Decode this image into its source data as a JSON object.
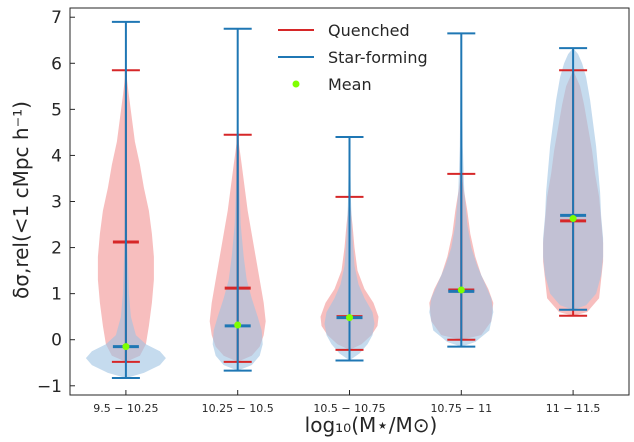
{
  "chart_data": {
    "type": "violin",
    "xlabel": "log₁₀(M⋆/M⊙)",
    "ylabel": "δσ,rel(<1 cMpc h⁻¹)",
    "categories": [
      "9.5 − 10.25",
      "10.25 − 10.5",
      "10.5 − 10.75",
      "10.75 − 11",
      "11 − 11.5"
    ],
    "ylim": [
      -1.2,
      7.2
    ],
    "yticks": [
      -1,
      0,
      1,
      2,
      3,
      4,
      5,
      6,
      7
    ],
    "grid": false,
    "legend_placement": "top-center",
    "legend": [
      {
        "label": "Quenched",
        "kind": "line",
        "color": "#d62728"
      },
      {
        "label": "Star-forming",
        "kind": "line",
        "color": "#1f77b4"
      },
      {
        "label": "Mean",
        "kind": "point",
        "color": "#7fff00"
      }
    ],
    "series": [
      {
        "name": "Quenched",
        "color": "#d62728",
        "fill": "#f4a8a8",
        "min": [
          -0.48,
          -0.48,
          -0.22,
          0.0,
          0.52
        ],
        "max": [
          5.85,
          4.45,
          3.1,
          3.6,
          5.85
        ],
        "median": [
          2.12,
          1.12,
          0.5,
          1.08,
          2.58
        ]
      },
      {
        "name": "Star-forming",
        "color": "#1f77b4",
        "fill": "#9ec3e3",
        "min": [
          -0.83,
          -0.67,
          -0.45,
          -0.15,
          0.65
        ],
        "max": [
          6.9,
          6.75,
          4.4,
          6.65,
          6.33
        ],
        "median": [
          -0.15,
          0.3,
          0.48,
          1.05,
          2.7
        ]
      }
    ],
    "mean": [
      -0.15,
      0.32,
      0.48,
      1.08,
      2.63
    ]
  }
}
